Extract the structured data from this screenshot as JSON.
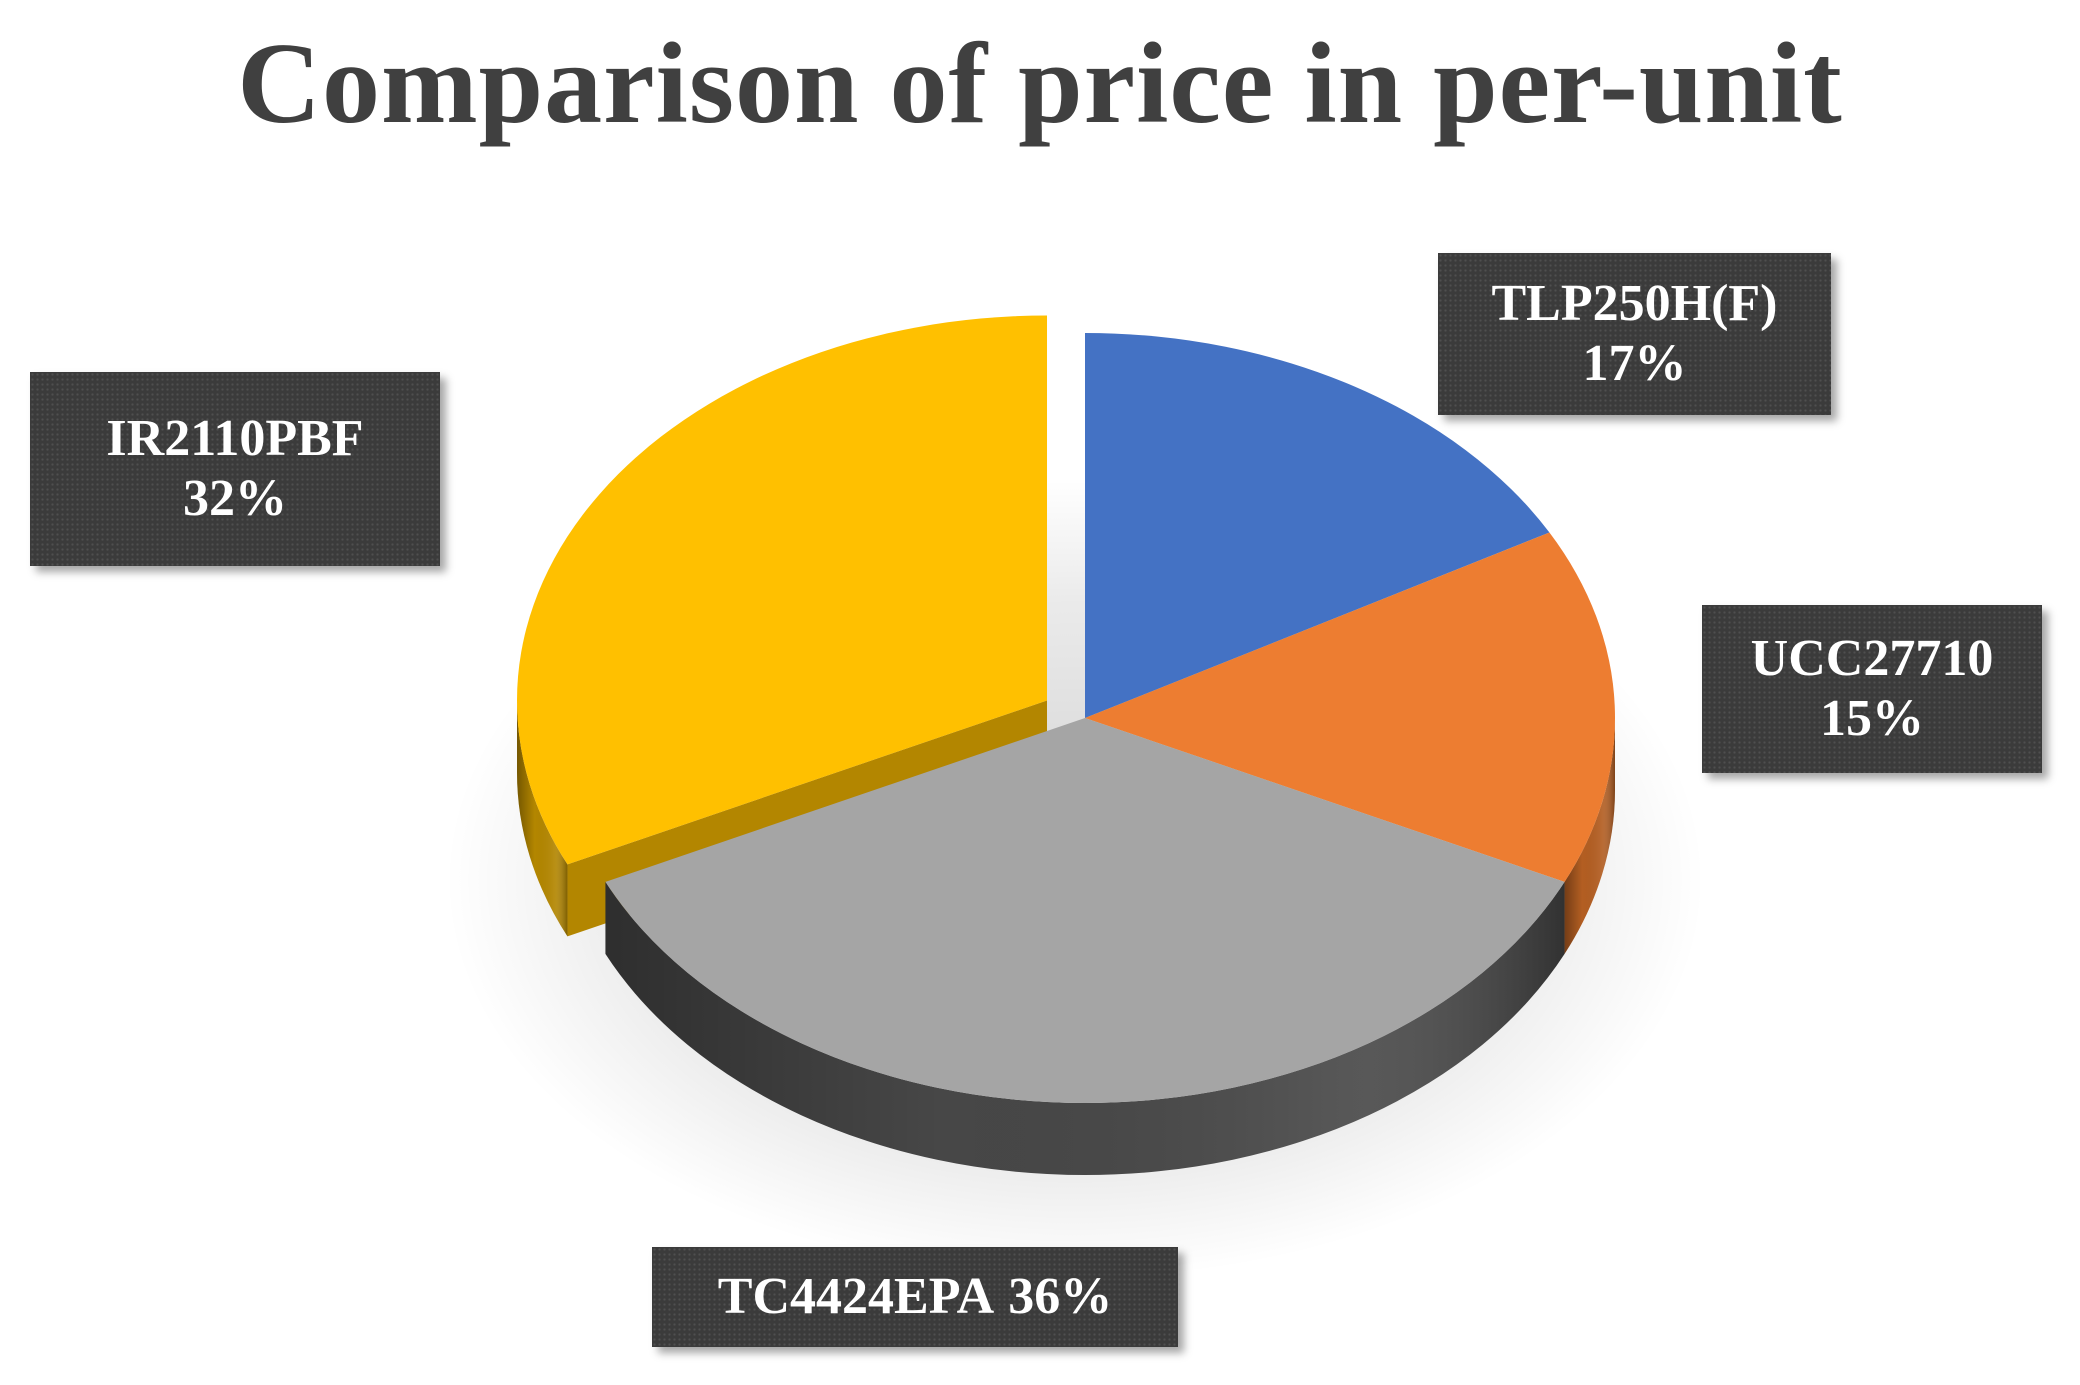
{
  "chart_data": {
    "type": "pie",
    "title": "Comparison of price in per-unit",
    "categories": [
      "TLP250H(F)",
      "UCC27710",
      "TC4424EPA",
      "IR2110PBF"
    ],
    "values": [
      17,
      15,
      36,
      32
    ],
    "labels": [
      {
        "name": "TLP250H(F)",
        "percent": "17%"
      },
      {
        "name": "UCC27710",
        "percent": "15%"
      },
      {
        "name": "TC4424EPA",
        "percent": "36%"
      },
      {
        "name": "IR2110PBF",
        "percent": "32%"
      }
    ],
    "colors": [
      "#4472C4",
      "#ED7D31",
      "#A5A5A5",
      "#FFC000"
    ],
    "side_colors": [
      "#2F528F",
      "#B35E22",
      "#474747",
      "#B38600"
    ],
    "exploded": [
      "IR2110PBF"
    ],
    "legend": "none",
    "style": "3d-pie"
  }
}
